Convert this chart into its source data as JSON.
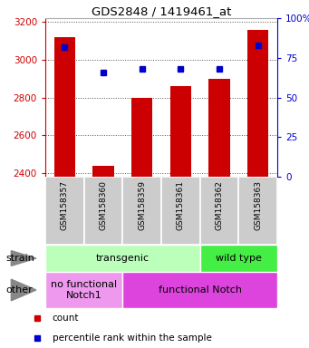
{
  "title": "GDS2848 / 1419461_at",
  "samples": [
    "GSM158357",
    "GSM158360",
    "GSM158359",
    "GSM158361",
    "GSM158362",
    "GSM158363"
  ],
  "counts": [
    3120,
    2440,
    2800,
    2860,
    2900,
    3160
  ],
  "percentiles": [
    82,
    66,
    68,
    68,
    68,
    83
  ],
  "ylim_left": [
    2380,
    3220
  ],
  "ylim_right": [
    0,
    100
  ],
  "yticks_left": [
    2400,
    2600,
    2800,
    3000,
    3200
  ],
  "yticks_right": [
    0,
    25,
    50,
    75,
    100
  ],
  "bar_color": "#cc0000",
  "dot_color": "#0000cc",
  "bar_bottom": 2380,
  "strain_labels": [
    {
      "text": "transgenic",
      "span": [
        0,
        4
      ],
      "color": "#bbffbb"
    },
    {
      "text": "wild type",
      "span": [
        4,
        6
      ],
      "color": "#44ee44"
    }
  ],
  "other_labels": [
    {
      "text": "no functional\nNotch1",
      "span": [
        0,
        2
      ],
      "color": "#ee99ee"
    },
    {
      "text": "functional Notch",
      "span": [
        2,
        6
      ],
      "color": "#dd44dd"
    }
  ],
  "strain_row_label": "strain",
  "other_row_label": "other",
  "legend_count_label": "count",
  "legend_pct_label": "percentile rank within the sample",
  "tick_color_left": "#cc0000",
  "tick_color_right": "#0000cc",
  "grid_color": "#555555",
  "sample_box_color": "#cccccc",
  "bar_width": 0.55
}
